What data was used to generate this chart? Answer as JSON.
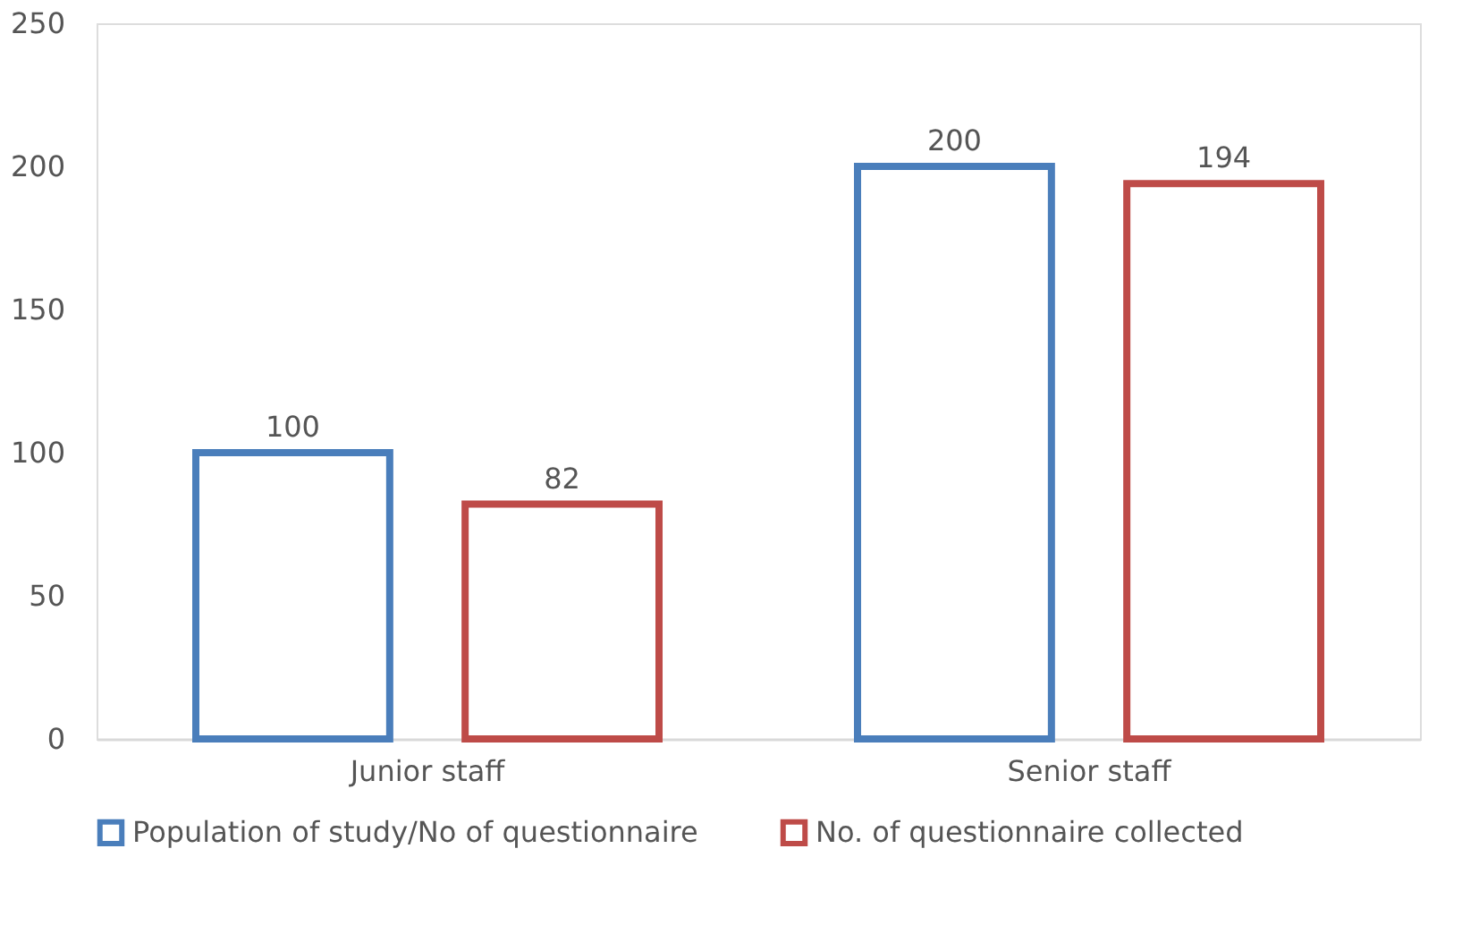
{
  "chart_data": {
    "type": "bar",
    "categories": [
      "Junior staff",
      "Senior staff"
    ],
    "series": [
      {
        "name": "Population of study/No of questionnaire",
        "color": "#4a7ebb",
        "values": [
          100,
          200
        ]
      },
      {
        "name": "No. of questionnaire collected",
        "color": "#be4b48",
        "values": [
          82,
          194
        ]
      }
    ],
    "ylim": [
      0,
      250
    ],
    "yticks": [
      0,
      50,
      100,
      150,
      200,
      250
    ],
    "data_labels": true,
    "legend": "bottom"
  }
}
